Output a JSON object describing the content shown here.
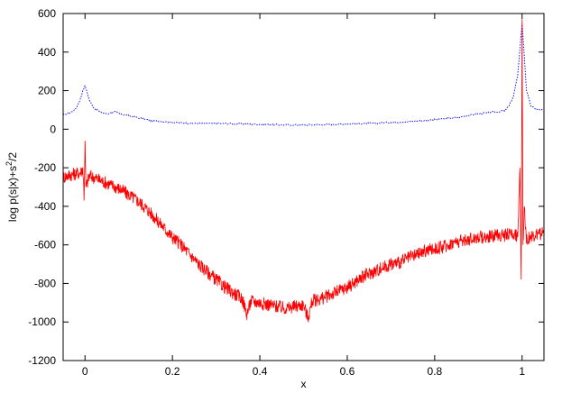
{
  "chart_data": {
    "type": "line",
    "title": "",
    "xlabel": "x",
    "ylabel_text": "log p(s|x)+s",
    "ylabel_sup": "2",
    "ylabel_tail": "/2",
    "xlim": [
      -0.05,
      1.05
    ],
    "ylim": [
      -1200,
      600
    ],
    "x_ticks": [
      0,
      0.2,
      0.4,
      0.6,
      0.8,
      1
    ],
    "x_tick_labels": [
      "0",
      "0.2",
      "0.4",
      "0.6",
      "0.8",
      "1"
    ],
    "y_ticks": [
      -1200,
      -1000,
      -800,
      -600,
      -400,
      -200,
      0,
      200,
      400,
      600
    ],
    "y_tick_labels": [
      "-1200",
      "-1000",
      "-800",
      "-600",
      "-400",
      "-200",
      "0",
      "200",
      "400",
      "600"
    ],
    "grid": false,
    "series": [
      {
        "style": "dotted",
        "color": "#0000ff",
        "x": [
          -0.05,
          -0.04,
          -0.03,
          -0.02,
          -0.01,
          -0.005,
          0,
          0.005,
          0.01,
          0.02,
          0.03,
          0.04,
          0.05,
          0.06,
          0.07,
          0.08,
          0.1,
          0.15,
          0.2,
          0.25,
          0.3,
          0.35,
          0.4,
          0.45,
          0.5,
          0.55,
          0.6,
          0.65,
          0.7,
          0.75,
          0.8,
          0.85,
          0.9,
          0.92,
          0.94,
          0.96,
          0.97,
          0.98,
          0.99,
          0.995,
          1.0,
          1.005,
          1.01,
          1.02,
          1.03,
          1.04,
          1.05
        ],
        "y": [
          75,
          80,
          90,
          110,
          160,
          200,
          225,
          190,
          150,
          110,
          95,
          85,
          80,
          85,
          90,
          80,
          70,
          45,
          35,
          30,
          30,
          28,
          25,
          22,
          22,
          24,
          28,
          30,
          35,
          40,
          50,
          60,
          80,
          85,
          90,
          95,
          120,
          170,
          280,
          420,
          550,
          380,
          200,
          120,
          105,
          100,
          100
        ]
      },
      {
        "style": "solid",
        "color": "#ff0000",
        "x": [
          -0.05,
          -0.04,
          -0.03,
          -0.02,
          -0.01,
          -0.005,
          -0.002,
          0,
          0.002,
          0.005,
          0.01,
          0.02,
          0.04,
          0.06,
          0.08,
          0.1,
          0.12,
          0.14,
          0.16,
          0.18,
          0.2,
          0.22,
          0.24,
          0.26,
          0.28,
          0.3,
          0.32,
          0.34,
          0.36,
          0.37,
          0.38,
          0.4,
          0.42,
          0.44,
          0.46,
          0.48,
          0.5,
          0.51,
          0.52,
          0.54,
          0.56,
          0.58,
          0.6,
          0.62,
          0.64,
          0.66,
          0.68,
          0.7,
          0.72,
          0.74,
          0.76,
          0.78,
          0.8,
          0.82,
          0.84,
          0.86,
          0.88,
          0.9,
          0.92,
          0.94,
          0.96,
          0.98,
          0.99,
          0.995,
          0.998,
          1.0,
          1.002,
          1.005,
          1.01,
          1.02,
          1.03,
          1.04,
          1.05
        ],
        "y": [
          -250,
          -240,
          -235,
          -230,
          -225,
          -200,
          -350,
          -60,
          -300,
          -280,
          -240,
          -250,
          -270,
          -290,
          -310,
          -340,
          -370,
          -410,
          -460,
          -510,
          -560,
          -600,
          -650,
          -700,
          -740,
          -780,
          -820,
          -850,
          -880,
          -960,
          -890,
          -900,
          -910,
          -920,
          -930,
          -920,
          -910,
          -980,
          -890,
          -880,
          -860,
          -840,
          -820,
          -790,
          -760,
          -740,
          -720,
          -700,
          -690,
          -670,
          -650,
          -630,
          -620,
          -610,
          -590,
          -580,
          -570,
          -560,
          -560,
          -550,
          -550,
          -540,
          -560,
          -200,
          -780,
          570,
          -600,
          -400,
          -570,
          -560,
          -550,
          -545,
          -540
        ]
      }
    ]
  }
}
